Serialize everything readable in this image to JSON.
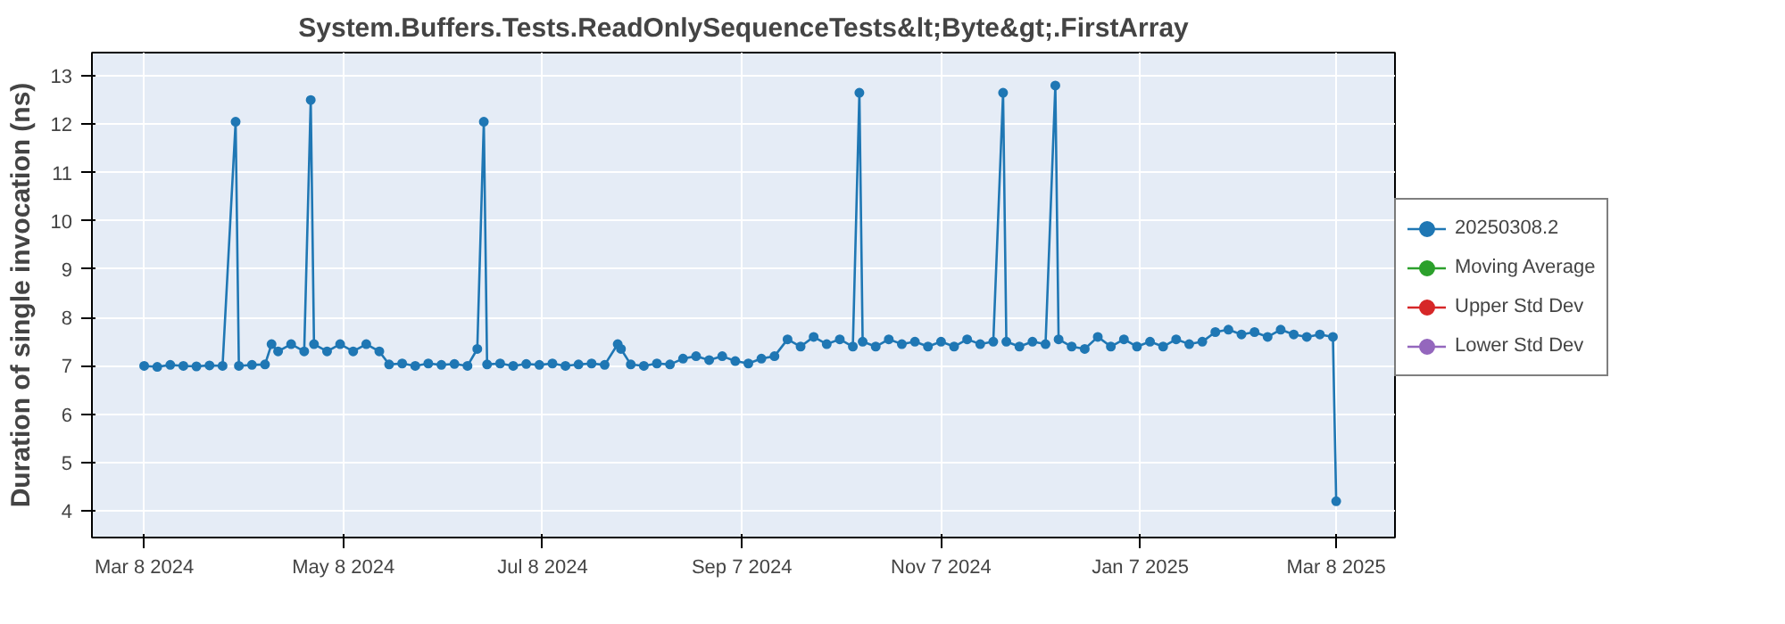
{
  "chart_data": {
    "type": "line",
    "title": "System.Buffers.Tests.ReadOnlySequenceTests&lt;Byte&gt;.FirstArray",
    "ylabel": "Duration of single invocation (ns)",
    "xlim": [
      "2024-02-21",
      "2025-03-26"
    ],
    "xticks": [
      {
        "value": "2024-03-08",
        "label": "Mar 8 2024"
      },
      {
        "value": "2024-05-08",
        "label": "May 8 2024"
      },
      {
        "value": "2024-07-08",
        "label": "Jul 8 2024"
      },
      {
        "value": "2024-09-07",
        "label": "Sep 7 2024"
      },
      {
        "value": "2024-11-07",
        "label": "Nov 7 2024"
      },
      {
        "value": "2025-01-07",
        "label": "Jan 7 2025"
      },
      {
        "value": "2025-03-08",
        "label": "Mar 8 2025"
      }
    ],
    "ylim": [
      3.45,
      13.48
    ],
    "yticks": [
      4,
      5,
      6,
      7,
      8,
      9,
      10,
      11,
      12,
      13
    ],
    "grid": true,
    "legend": "right",
    "marker": "circle",
    "line_style": "solid",
    "series": [
      {
        "name": "20250308.2",
        "color": "#1f77b4",
        "x": [
          "2024-03-08",
          "2024-03-12",
          "2024-03-16",
          "2024-03-20",
          "2024-03-24",
          "2024-03-28",
          "2024-04-01",
          "2024-04-05",
          "2024-04-06",
          "2024-04-10",
          "2024-04-14",
          "2024-04-16",
          "2024-04-18",
          "2024-04-22",
          "2024-04-26",
          "2024-04-28",
          "2024-04-29",
          "2024-05-03",
          "2024-05-07",
          "2024-05-11",
          "2024-05-15",
          "2024-05-19",
          "2024-05-22",
          "2024-05-26",
          "2024-05-30",
          "2024-06-03",
          "2024-06-07",
          "2024-06-11",
          "2024-06-15",
          "2024-06-18",
          "2024-06-20",
          "2024-06-21",
          "2024-06-25",
          "2024-06-29",
          "2024-07-03",
          "2024-07-07",
          "2024-07-11",
          "2024-07-15",
          "2024-07-19",
          "2024-07-23",
          "2024-07-27",
          "2024-07-31",
          "2024-08-01",
          "2024-08-04",
          "2024-08-08",
          "2024-08-12",
          "2024-08-16",
          "2024-08-20",
          "2024-08-24",
          "2024-08-28",
          "2024-09-01",
          "2024-09-05",
          "2024-09-09",
          "2024-09-13",
          "2024-09-17",
          "2024-09-21",
          "2024-09-25",
          "2024-09-29",
          "2024-10-03",
          "2024-10-07",
          "2024-10-11",
          "2024-10-13",
          "2024-10-14",
          "2024-10-18",
          "2024-10-22",
          "2024-10-26",
          "2024-10-30",
          "2024-11-03",
          "2024-11-07",
          "2024-11-11",
          "2024-11-15",
          "2024-11-19",
          "2024-11-23",
          "2024-11-26",
          "2024-11-27",
          "2024-12-01",
          "2024-12-05",
          "2024-12-09",
          "2024-12-12",
          "2024-12-13",
          "2024-12-17",
          "2024-12-21",
          "2024-12-25",
          "2024-12-29",
          "2025-01-02",
          "2025-01-06",
          "2025-01-10",
          "2025-01-14",
          "2025-01-18",
          "2025-01-22",
          "2025-01-26",
          "2025-01-30",
          "2025-02-03",
          "2025-02-07",
          "2025-02-11",
          "2025-02-15",
          "2025-02-19",
          "2025-02-23",
          "2025-02-27",
          "2025-03-03",
          "2025-03-07",
          "2025-03-08"
        ],
        "values": [
          7.0,
          6.98,
          7.02,
          7.0,
          6.99,
          7.01,
          7.0,
          12.05,
          7.0,
          7.02,
          7.03,
          7.45,
          7.3,
          7.45,
          7.3,
          12.5,
          7.45,
          7.3,
          7.45,
          7.3,
          7.45,
          7.3,
          7.03,
          7.05,
          7.0,
          7.05,
          7.02,
          7.04,
          7.0,
          7.35,
          12.05,
          7.03,
          7.05,
          7.0,
          7.04,
          7.02,
          7.05,
          7.0,
          7.03,
          7.05,
          7.02,
          7.45,
          7.35,
          7.03,
          7.0,
          7.05,
          7.03,
          7.15,
          7.2,
          7.12,
          7.2,
          7.1,
          7.05,
          7.15,
          7.2,
          7.55,
          7.4,
          7.6,
          7.45,
          7.55,
          7.4,
          12.65,
          7.5,
          7.4,
          7.55,
          7.45,
          7.5,
          7.4,
          7.5,
          7.4,
          7.55,
          7.45,
          7.5,
          12.65,
          7.5,
          7.4,
          7.5,
          7.45,
          12.8,
          7.55,
          7.4,
          7.35,
          7.6,
          7.4,
          7.55,
          7.4,
          7.5,
          7.4,
          7.55,
          7.45,
          7.5,
          7.7,
          7.75,
          7.65,
          7.7,
          7.6,
          7.75,
          7.65,
          7.6,
          7.65,
          7.6,
          4.2
        ]
      },
      {
        "name": "Moving Average",
        "color": "#2ca02c"
      },
      {
        "name": "Upper Std Dev",
        "color": "#d62728"
      },
      {
        "name": "Lower Std Dev",
        "color": "#9467bd"
      }
    ]
  }
}
